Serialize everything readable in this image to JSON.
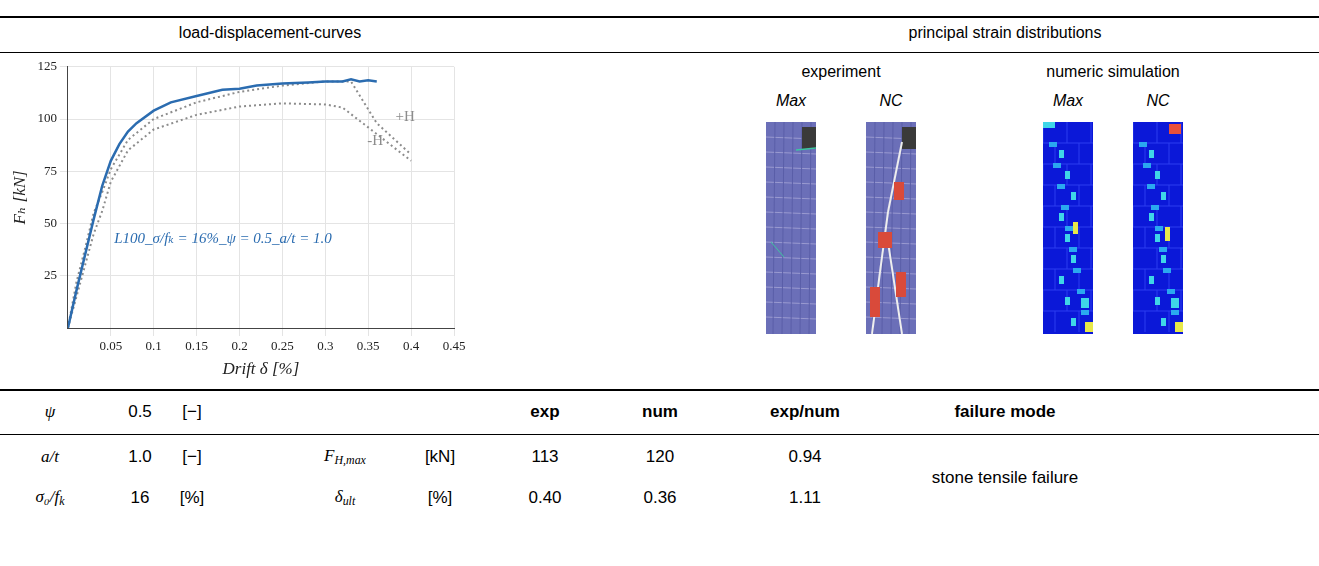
{
  "header": {
    "left": "load-displacement-curves",
    "right": "principal strain distributions"
  },
  "images": {
    "groups": [
      {
        "title": "experiment",
        "panels": [
          "Max",
          "NC"
        ]
      },
      {
        "title": "numeric simulation",
        "panels": [
          "Max",
          "NC"
        ]
      }
    ]
  },
  "chart_data": {
    "type": "line",
    "x_label": "Drift δ [%]",
    "y_label": "Fₕ [kN]",
    "xlim": [
      0,
      0.45
    ],
    "xticks": [
      0.05,
      0.1,
      0.15,
      0.2,
      0.25,
      0.3,
      0.35,
      0.4,
      0.45
    ],
    "ylim": [
      0,
      125
    ],
    "yticks": [
      25,
      50,
      75,
      100,
      125
    ],
    "grid": true,
    "series": [
      {
        "name": "L100_σ/fₖ = 16%_ψ = 0.5_a/t = 1.0",
        "color": "#2b6cb0",
        "line_style": "solid",
        "x": [
          0,
          0.01,
          0.02,
          0.03,
          0.04,
          0.05,
          0.06,
          0.07,
          0.08,
          0.1,
          0.12,
          0.15,
          0.18,
          0.2,
          0.22,
          0.25,
          0.28,
          0.3,
          0.32,
          0.33,
          0.34,
          0.35,
          0.36
        ],
        "values": [
          0,
          18,
          35,
          52,
          68,
          80,
          88,
          94,
          98,
          104,
          108,
          111,
          114,
          114.5,
          116,
          117,
          117.5,
          118,
          118,
          119,
          118,
          118.5,
          118
        ]
      },
      {
        "name": "+H",
        "color": "#8c8c8c",
        "line_style": "dotted",
        "x": [
          0,
          0.01,
          0.02,
          0.03,
          0.04,
          0.05,
          0.07,
          0.1,
          0.15,
          0.2,
          0.25,
          0.3,
          0.33,
          0.36,
          0.4
        ],
        "values": [
          0,
          22,
          38,
          55,
          65,
          76,
          90,
          100,
          108,
          113,
          116,
          118,
          118,
          98,
          83
        ]
      },
      {
        "name": "-H",
        "color": "#8c8c8c",
        "line_style": "dotted",
        "x": [
          0,
          0.01,
          0.02,
          0.03,
          0.04,
          0.05,
          0.07,
          0.1,
          0.15,
          0.2,
          0.25,
          0.3,
          0.32,
          0.35,
          0.4
        ],
        "values": [
          0,
          15,
          30,
          45,
          56,
          70,
          85,
          95,
          102,
          106,
          107.5,
          107,
          105.5,
          96,
          80
        ]
      }
    ]
  },
  "table": {
    "rows": [
      [
        "ψ",
        "0.5",
        "[−]",
        null,
        null,
        "exp",
        "num",
        "exp/num",
        "failure mode"
      ],
      [
        "a/t",
        "1.0",
        "[−]",
        {
          "text": "F",
          "sub": "H,max"
        },
        "[kN]",
        "113",
        "120",
        "0.94"
      ],
      [
        {
          "text": "σ₀/f",
          "sub": "k"
        },
        "16",
        "[%]",
        {
          "text": "δ",
          "sub": "ult"
        },
        "[%]",
        "0.40",
        "0.36",
        "1.11"
      ]
    ],
    "merged_cell": "stone tensile failure"
  }
}
